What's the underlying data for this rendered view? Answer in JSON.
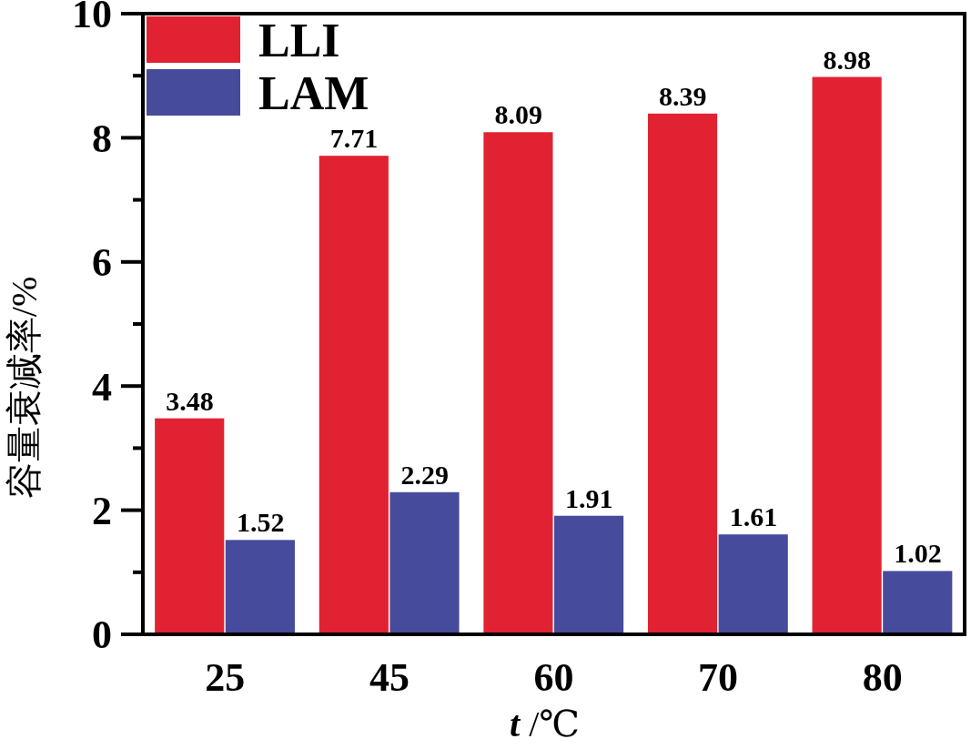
{
  "chart_data": {
    "type": "bar",
    "categories": [
      "25",
      "45",
      "60",
      "70",
      "80"
    ],
    "xlabel": "t /℃",
    "ylabel": "容量衰减率/%",
    "series": [
      {
        "name": "LLI",
        "color": "#e12232",
        "values": [
          3.48,
          7.71,
          8.09,
          8.39,
          8.98
        ]
      },
      {
        "name": "LAM",
        "color": "#474b9b",
        "values": [
          1.52,
          2.29,
          1.91,
          1.61,
          1.02
        ]
      }
    ],
    "ylim": [
      0,
      10
    ],
    "yticks": [
      0,
      {
        "value": 1,
        "label": null
      },
      2,
      {
        "value": 3,
        "label": null
      },
      4,
      {
        "value": 5,
        "label": null
      },
      6,
      {
        "value": 7,
        "label": null
      },
      8,
      {
        "value": 9,
        "label": null
      },
      10
    ],
    "data_labels": true,
    "legend": "top left"
  }
}
